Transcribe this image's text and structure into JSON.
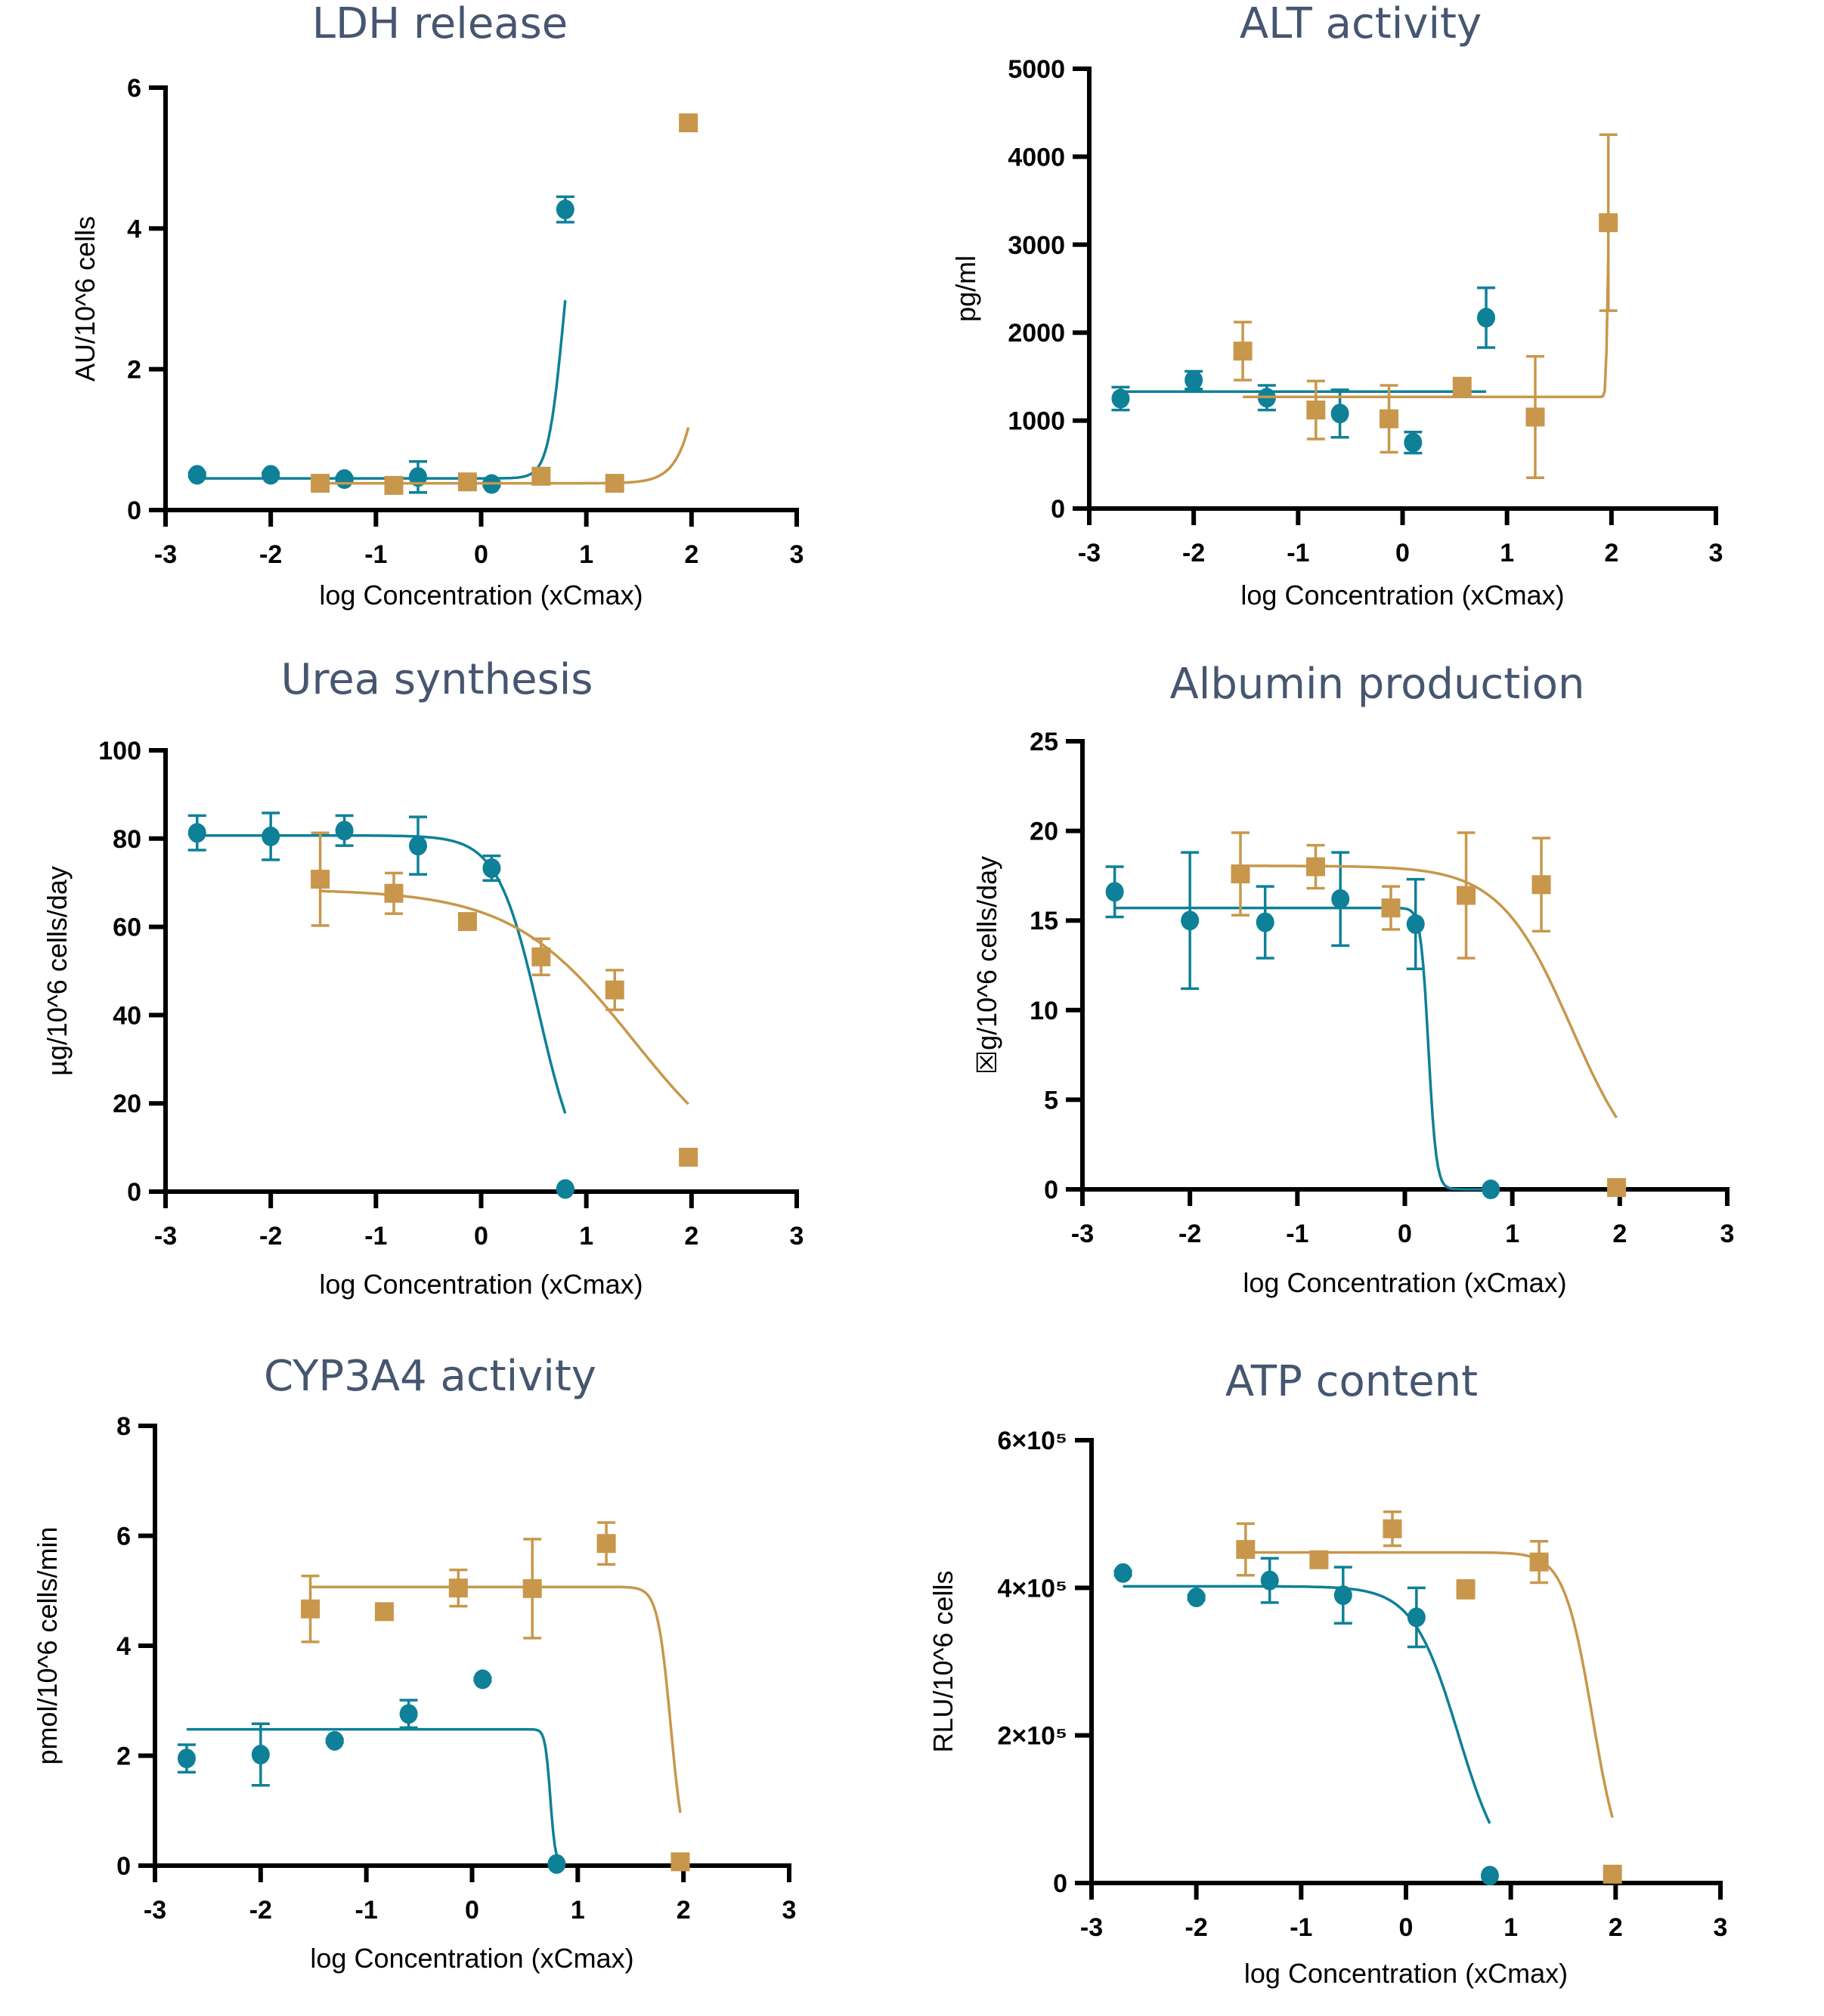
{
  "colors": {
    "teal": "#0e8098",
    "gold": "#c8974c",
    "title": "#465670"
  },
  "chart_data": [
    {
      "type": "scatter",
      "title": "LDH release",
      "xlabel": "log Concentration (xCmax)",
      "ylabel": "AU/10^6 cells",
      "xlim": [
        -3,
        3
      ],
      "ylim": [
        0,
        6
      ],
      "xticks": [
        "-3",
        "-2",
        "-1",
        "0",
        "1",
        "2",
        "3"
      ],
      "yticks": [
        "0",
        "2",
        "4",
        "6"
      ],
      "yvals": [
        0,
        2,
        4,
        6
      ],
      "series": [
        {
          "name": "teal",
          "marker": "circle",
          "points": [
            [
              -2.7,
              0.5,
              0.03
            ],
            [
              -2.0,
              0.5,
              0.03
            ],
            [
              -1.3,
              0.44,
              0.03
            ],
            [
              -0.6,
              0.47,
              0.22
            ],
            [
              0.1,
              0.37,
              0.03
            ],
            [
              0.8,
              4.27,
              0.18
            ]
          ],
          "curve": {
            "bottom": 0.45,
            "top": 4.9,
            "ec50": 0.78,
            "hill": 6,
            "xmin": -2.7,
            "xmax": 0.8
          }
        },
        {
          "name": "gold",
          "marker": "square",
          "points": [
            [
              -1.53,
              0.38,
              0.03
            ],
            [
              -0.83,
              0.35,
              0.03
            ],
            [
              -0.13,
              0.4,
              0.03
            ],
            [
              0.57,
              0.48,
              0.03
            ],
            [
              1.27,
              0.38,
              0.03
            ],
            [
              1.97,
              5.5,
              0.03
            ]
          ],
          "curve": {
            "bottom": 0.38,
            "top": 20,
            "ec50": 2.4,
            "hill": 3.2,
            "xmin": -1.53,
            "xmax": 1.97
          }
        }
      ]
    },
    {
      "type": "scatter",
      "title": "ALT activity",
      "xlabel": "log Concentration (xCmax)",
      "ylabel": "pg/ml",
      "xlim": [
        -3,
        3
      ],
      "ylim": [
        0,
        5000
      ],
      "xticks": [
        "-3",
        "-2",
        "-1",
        "0",
        "1",
        "2",
        "3"
      ],
      "yticks": [
        "0",
        "1000",
        "2000",
        "3000",
        "4000",
        "5000"
      ],
      "yvals": [
        0,
        1000,
        2000,
        3000,
        4000,
        5000
      ],
      "series": [
        {
          "name": "teal",
          "marker": "circle",
          "points": [
            [
              -2.7,
              1250,
              130
            ],
            [
              -2.0,
              1460,
              100
            ],
            [
              -1.3,
              1260,
              140
            ],
            [
              -0.6,
              1080,
              270
            ],
            [
              0.1,
              750,
              120
            ],
            [
              0.8,
              2170,
              340
            ]
          ],
          "curve": {
            "bottom": 1330,
            "top": 1330,
            "ec50": 0,
            "hill": 1,
            "xmin": -2.7,
            "xmax": 0.8
          }
        },
        {
          "name": "gold",
          "marker": "square",
          "points": [
            [
              -1.53,
              1790,
              330
            ],
            [
              -0.83,
              1120,
              330
            ],
            [
              -0.13,
              1020,
              380
            ],
            [
              0.57,
              1390,
              30
            ],
            [
              1.27,
              1040,
              690
            ],
            [
              1.97,
              3250,
              1000
            ]
          ],
          "curve": {
            "bottom": 1270,
            "top": 3300,
            "ec50": 1.96,
            "hill": 60,
            "xmin": -1.53,
            "xmax": 1.97
          }
        }
      ]
    },
    {
      "type": "scatter",
      "title": "Urea synthesis",
      "xlabel": "log Concentration (xCmax)",
      "ylabel": "µg/10^6 cells/day",
      "xlim": [
        -3,
        3
      ],
      "ylim": [
        0,
        100
      ],
      "xticks": [
        "-3",
        "-2",
        "-1",
        "0",
        "1",
        "2",
        "3"
      ],
      "yticks": [
        "0",
        "20",
        "40",
        "60",
        "80",
        "100"
      ],
      "yvals": [
        0,
        20,
        40,
        60,
        80,
        100
      ],
      "series": [
        {
          "name": "teal",
          "marker": "circle",
          "points": [
            [
              -2.7,
              81.3,
              3.9
            ],
            [
              -2.0,
              80.5,
              5.3
            ],
            [
              -1.3,
              81.8,
              3.4
            ],
            [
              -0.6,
              78.4,
              6.5
            ],
            [
              0.1,
              73.3,
              2.8
            ],
            [
              0.8,
              0.6,
              0.2
            ]
          ],
          "curve": {
            "bottom": 0,
            "top": 80.7,
            "ec50": 0.55,
            "hill": -2.2,
            "xmin": -2.7,
            "xmax": 0.8
          }
        },
        {
          "name": "gold",
          "marker": "square",
          "points": [
            [
              -1.53,
              70.8,
              10.5
            ],
            [
              -0.83,
              67.6,
              4.6
            ],
            [
              -0.13,
              61.2,
              0.5
            ],
            [
              0.57,
              53.2,
              4.1
            ],
            [
              1.27,
              45.7,
              4.5
            ],
            [
              1.97,
              7.8,
              0.3
            ]
          ],
          "curve": {
            "bottom": 0,
            "top": 68.5,
            "ec50": 1.45,
            "hill": -0.75,
            "xmin": -1.53,
            "xmax": 1.97
          }
        }
      ]
    },
    {
      "type": "scatter",
      "title": "Albumin production",
      "xlabel": "log Concentration (xCmax)",
      "ylabel": "☒g/10^6 cells/day",
      "xlim": [
        -3,
        3
      ],
      "ylim": [
        0,
        25
      ],
      "xticks": [
        "-3",
        "-2",
        "-1",
        "0",
        "1",
        "2",
        "3"
      ],
      "yticks": [
        "0",
        "5",
        "10",
        "15",
        "20",
        "25"
      ],
      "yvals": [
        0,
        5,
        10,
        15,
        20,
        25
      ],
      "series": [
        {
          "name": "teal",
          "marker": "circle",
          "points": [
            [
              -2.7,
              16.6,
              1.4
            ],
            [
              -2.0,
              15.0,
              3.8
            ],
            [
              -1.3,
              14.9,
              2.0
            ],
            [
              -0.6,
              16.2,
              2.6
            ],
            [
              0.1,
              14.8,
              2.5
            ],
            [
              0.8,
              0.0,
              0.0
            ]
          ],
          "curve": {
            "bottom": 0,
            "top": 15.7,
            "ec50": 0.22,
            "hill": -12,
            "xmin": -2.7,
            "xmax": 0.8
          }
        },
        {
          "name": "gold",
          "marker": "square",
          "points": [
            [
              -1.53,
              17.6,
              2.3
            ],
            [
              -0.83,
              18.0,
              1.2
            ],
            [
              -0.13,
              15.7,
              1.2
            ],
            [
              0.57,
              16.4,
              3.5
            ],
            [
              1.27,
              17.0,
              2.6
            ],
            [
              1.97,
              0.1,
              0.0
            ]
          ],
          "curve": {
            "bottom": 0,
            "top": 18.05,
            "ec50": 1.55,
            "hill": -1.3,
            "xmin": -1.53,
            "xmax": 1.97
          }
        }
      ]
    },
    {
      "type": "scatter",
      "title": "CYP3A4 activity",
      "xlabel": "log Concentration (xCmax)",
      "ylabel": "pmol/10^6 cells/min",
      "xlim": [
        -3,
        3
      ],
      "ylim": [
        0,
        8
      ],
      "xticks": [
        "-3",
        "-2",
        "-1",
        "0",
        "1",
        "2",
        "3"
      ],
      "yticks": [
        "0",
        "2",
        "4",
        "6",
        "8"
      ],
      "yvals": [
        0,
        2,
        4,
        6,
        8
      ],
      "series": [
        {
          "name": "teal",
          "marker": "circle",
          "points": [
            [
              -2.7,
              1.95,
              0.25
            ],
            [
              -2.0,
              2.02,
              0.56
            ],
            [
              -1.3,
              2.27,
              0.03
            ],
            [
              -0.6,
              2.76,
              0.25
            ],
            [
              0.1,
              3.39,
              0.03
            ],
            [
              0.8,
              0.03,
              0.0
            ]
          ],
          "curve": {
            "bottom": 0,
            "top": 2.48,
            "ec50": 0.74,
            "hill": -18,
            "xmin": -2.7,
            "xmax": 0.8
          }
        },
        {
          "name": "gold",
          "marker": "square",
          "points": [
            [
              -1.53,
              4.67,
              0.6
            ],
            [
              -0.83,
              4.62,
              0.03
            ],
            [
              -0.13,
              5.05,
              0.33
            ],
            [
              0.57,
              5.04,
              0.9
            ],
            [
              1.27,
              5.86,
              0.38
            ],
            [
              1.97,
              0.07,
              0.0
            ]
          ],
          "curve": {
            "bottom": 0,
            "top": 5.07,
            "ec50": 1.88,
            "hill": -7,
            "xmin": -1.53,
            "xmax": 1.97
          }
        }
      ]
    },
    {
      "type": "scatter",
      "title": "ATP content",
      "xlabel": "log Concentration (xCmax)",
      "ylabel": "RLU/10^6 cells",
      "xlim": [
        -3,
        3
      ],
      "ylim": [
        0,
        600000
      ],
      "xticks": [
        "-3",
        "-2",
        "-1",
        "0",
        "1",
        "2",
        "3"
      ],
      "yticks": [
        "0",
        "2×10⁵",
        "4×10⁵",
        "6×10⁵"
      ],
      "yvals": [
        0,
        200000,
        400000,
        600000
      ],
      "series": [
        {
          "name": "teal",
          "marker": "circle",
          "points": [
            [
              -2.7,
              420000,
              3000
            ],
            [
              -2.0,
              387000,
              3000
            ],
            [
              -1.3,
              410000,
              30000
            ],
            [
              -0.6,
              390000,
              38000
            ],
            [
              0.1,
              360000,
              40000
            ],
            [
              0.8,
              10000,
              0
            ]
          ],
          "curve": {
            "bottom": 0,
            "top": 402000,
            "ec50": 0.5,
            "hill": -2.0,
            "xmin": -2.7,
            "xmax": 0.8
          }
        },
        {
          "name": "gold",
          "marker": "square",
          "points": [
            [
              -1.53,
              452000,
              35000
            ],
            [
              -0.83,
              438000,
              3000
            ],
            [
              -0.13,
              480000,
              23000
            ],
            [
              0.57,
              398000,
              12000
            ],
            [
              1.27,
              435000,
              28000
            ],
            [
              1.97,
              12000,
              0
            ]
          ],
          "curve": {
            "bottom": 0,
            "top": 448000,
            "ec50": 1.78,
            "hill": -3.2,
            "xmin": -1.53,
            "xmax": 1.97
          }
        }
      ]
    }
  ]
}
